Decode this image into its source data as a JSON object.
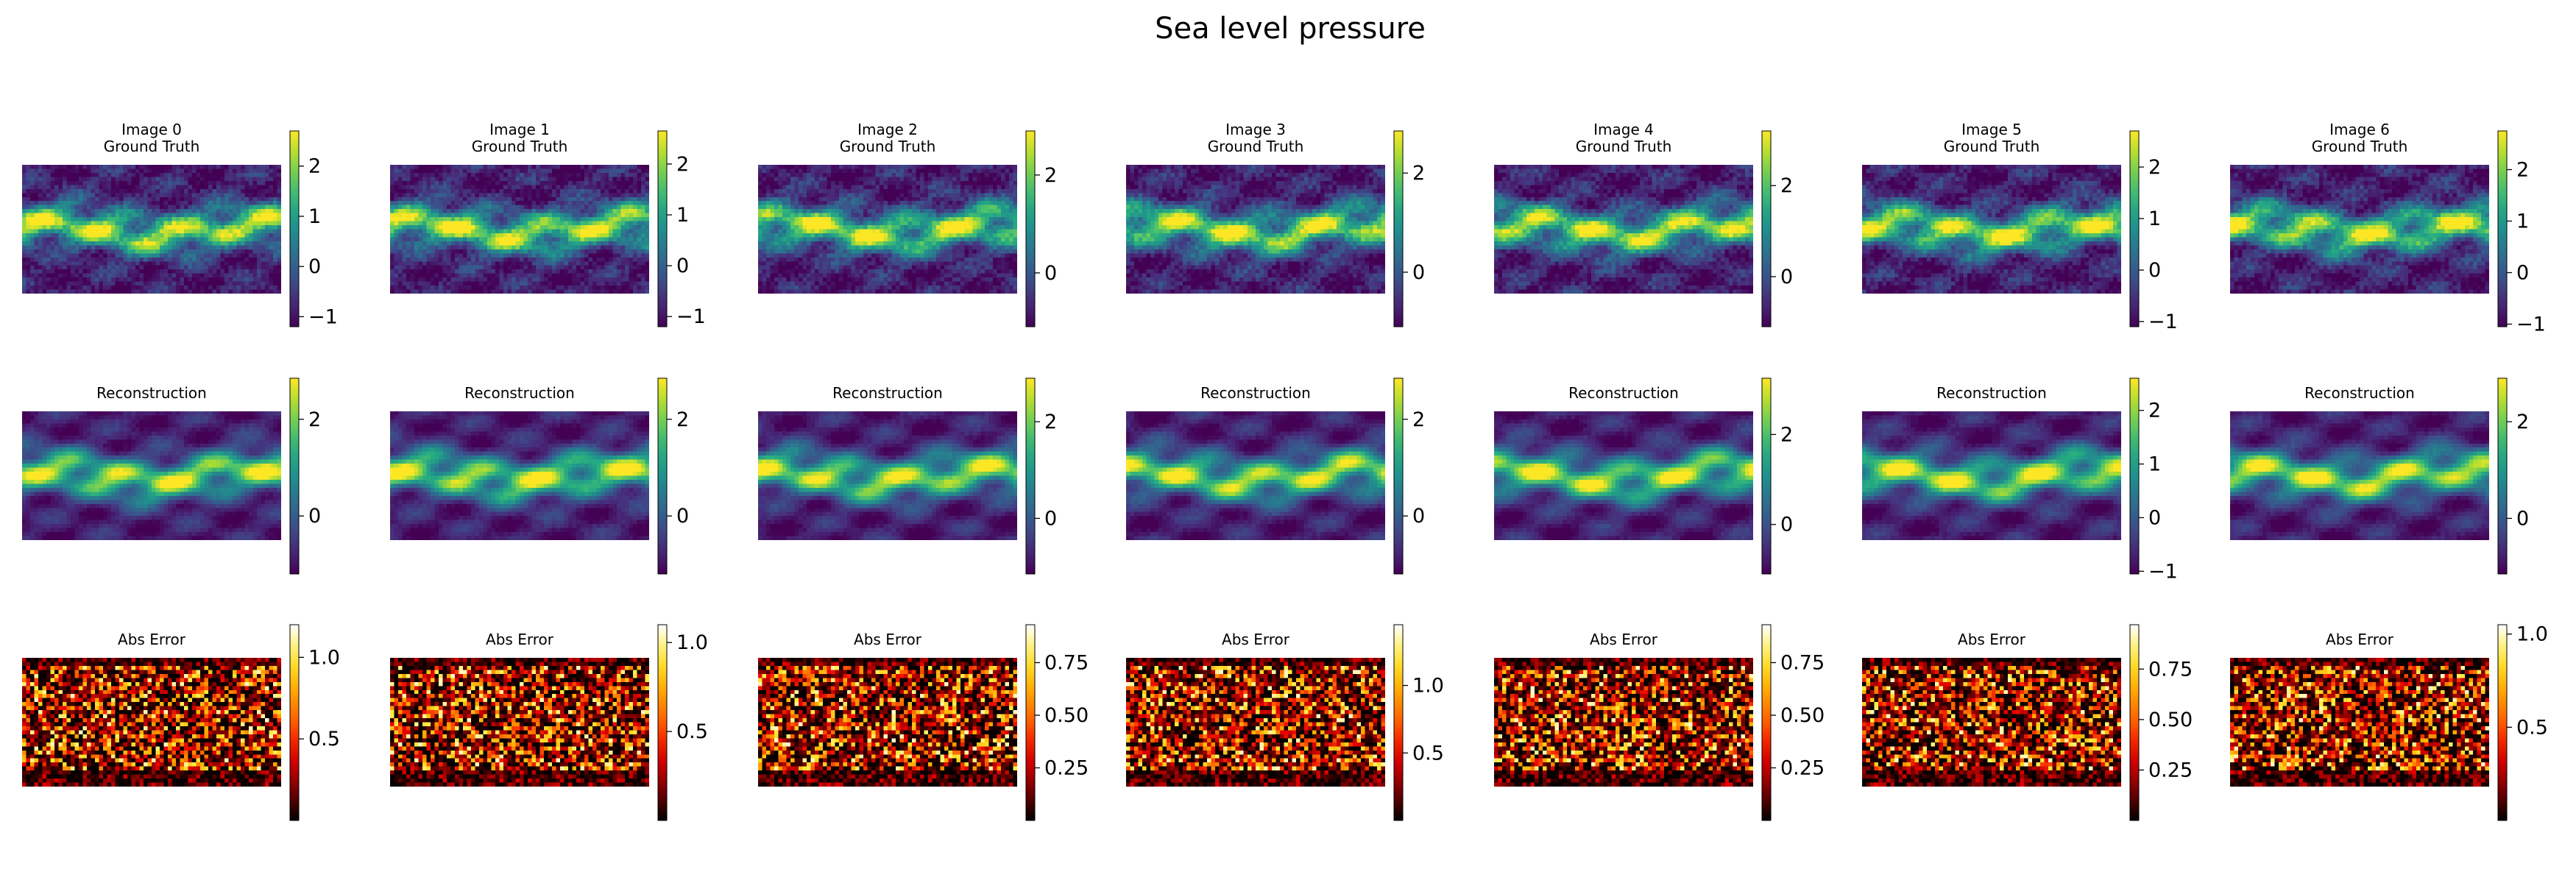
{
  "figure": {
    "title": "Sea level pressure"
  },
  "chart_data": {
    "type": "heatmap",
    "title": "Sea level pressure",
    "grid_shape": [
      32,
      64
    ],
    "rows": [
      {
        "key": "ground_truth",
        "colormap": "viridis",
        "panels": [
          {
            "title": [
              "Image 0",
              "Ground Truth"
            ],
            "vmin": -1.2,
            "vmax": 2.7,
            "cbar_ticks": [
              -1,
              0,
              1,
              2
            ]
          },
          {
            "title": [
              "Image 1",
              "Ground Truth"
            ],
            "vmin": -1.2,
            "vmax": 2.65,
            "cbar_ticks": [
              -1,
              0,
              1,
              2
            ]
          },
          {
            "title": [
              "Image 2",
              "Ground Truth"
            ],
            "vmin": -1.1,
            "vmax": 2.9,
            "cbar_ticks": [
              0,
              2
            ]
          },
          {
            "title": [
              "Image 3",
              "Ground Truth"
            ],
            "vmin": -1.1,
            "vmax": 2.85,
            "cbar_ticks": [
              0,
              2
            ]
          },
          {
            "title": [
              "Image 4",
              "Ground Truth"
            ],
            "vmin": -1.1,
            "vmax": 3.2,
            "cbar_ticks": [
              0,
              2
            ]
          },
          {
            "title": [
              "Image 5",
              "Ground Truth"
            ],
            "vmin": -1.1,
            "vmax": 2.7,
            "cbar_ticks": [
              -1,
              0,
              1,
              2
            ]
          },
          {
            "title": [
              "Image 6",
              "Ground Truth"
            ],
            "vmin": -1.05,
            "vmax": 2.75,
            "cbar_ticks": [
              -1,
              0,
              1,
              2
            ]
          }
        ]
      },
      {
        "key": "reconstruction",
        "colormap": "viridis",
        "panels": [
          {
            "title": [
              "Reconstruction"
            ],
            "vmin": -1.2,
            "vmax": 2.85,
            "cbar_ticks": [
              0,
              2
            ]
          },
          {
            "title": [
              "Reconstruction"
            ],
            "vmin": -1.2,
            "vmax": 2.85,
            "cbar_ticks": [
              0,
              2
            ]
          },
          {
            "title": [
              "Reconstruction"
            ],
            "vmin": -1.15,
            "vmax": 2.9,
            "cbar_ticks": [
              0,
              2
            ]
          },
          {
            "title": [
              "Reconstruction"
            ],
            "vmin": -1.2,
            "vmax": 2.85,
            "cbar_ticks": [
              0,
              2
            ]
          },
          {
            "title": [
              "Reconstruction"
            ],
            "vmin": -1.1,
            "vmax": 3.25,
            "cbar_ticks": [
              0,
              2
            ]
          },
          {
            "title": [
              "Reconstruction"
            ],
            "vmin": -1.05,
            "vmax": 2.6,
            "cbar_ticks": [
              -1,
              0,
              1,
              2
            ]
          },
          {
            "title": [
              "Reconstruction"
            ],
            "vmin": -1.15,
            "vmax": 2.9,
            "cbar_ticks": [
              0,
              2
            ]
          }
        ]
      },
      {
        "key": "abs_error",
        "colormap": "hot",
        "panels": [
          {
            "title": [
              "Abs Error"
            ],
            "vmin": 0.0,
            "vmax": 1.2,
            "cbar_ticks": [
              0.5,
              1.0
            ],
            "tick_labels": [
              "0.5",
              "1.0"
            ]
          },
          {
            "title": [
              "Abs Error"
            ],
            "vmin": 0.0,
            "vmax": 1.1,
            "cbar_ticks": [
              0.5,
              1.0
            ],
            "tick_labels": [
              "0.5",
              "1.0"
            ]
          },
          {
            "title": [
              "Abs Error"
            ],
            "vmin": 0.0,
            "vmax": 0.93,
            "cbar_ticks": [
              0.25,
              0.5,
              0.75
            ],
            "tick_labels": [
              "0.25",
              "0.50",
              "0.75"
            ]
          },
          {
            "title": [
              "Abs Error"
            ],
            "vmin": 0.0,
            "vmax": 1.45,
            "cbar_ticks": [
              0.5,
              1.0
            ],
            "tick_labels": [
              "0.5",
              "1.0"
            ]
          },
          {
            "title": [
              "Abs Error"
            ],
            "vmin": 0.0,
            "vmax": 0.93,
            "cbar_ticks": [
              0.25,
              0.5,
              0.75
            ],
            "tick_labels": [
              "0.25",
              "0.50",
              "0.75"
            ]
          },
          {
            "title": [
              "Abs Error"
            ],
            "vmin": 0.0,
            "vmax": 0.97,
            "cbar_ticks": [
              0.25,
              0.5,
              0.75
            ],
            "tick_labels": [
              "0.25",
              "0.50",
              "0.75"
            ]
          },
          {
            "title": [
              "Abs Error"
            ],
            "vmin": 0.0,
            "vmax": 1.05,
            "cbar_ticks": [
              0.5,
              1.0
            ],
            "tick_labels": [
              "0.5",
              "1.0"
            ]
          }
        ]
      }
    ]
  }
}
